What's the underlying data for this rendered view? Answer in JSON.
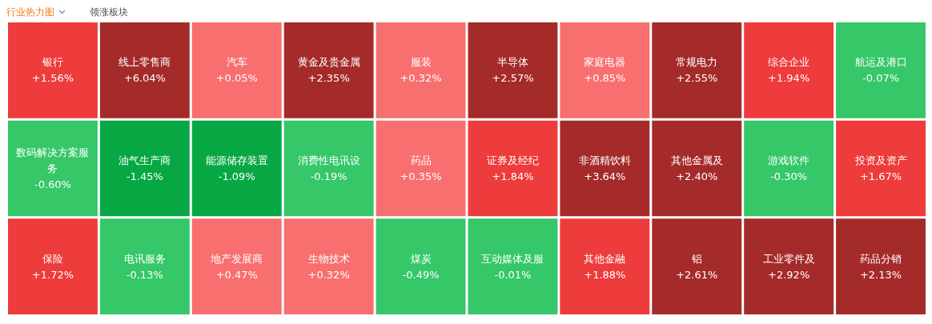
{
  "chart_data": {
    "type": "other",
    "title": "行业热力图",
    "annotations": [
      "领涨板块"
    ],
    "categories": [
      "银行",
      "数码解决方案服务",
      "保险",
      "线上零售商",
      "油气生产商",
      "电讯服务",
      "汽车",
      "能源储存装置",
      "地产发展商",
      "黄金及贵金属",
      "消费性电讯设",
      "生物技术",
      "服装",
      "药品",
      "煤炭",
      "半导体",
      "证券及经纪",
      "互动媒体及服",
      "家庭电器",
      "非酒精饮料",
      "其他金融",
      "常规电力",
      "综合企业",
      "航运及港口",
      "其他金属及",
      "铝",
      "游戏软件",
      "投资及资产",
      "工业零件及",
      "药品分销"
    ],
    "values": [
      1.56,
      -0.6,
      1.72,
      6.04,
      -1.45,
      -0.13,
      0.05,
      -1.09,
      0.47,
      2.35,
      -0.19,
      0.32,
      0.32,
      0.35,
      -0.49,
      2.57,
      1.84,
      -0.01,
      0.85,
      3.64,
      1.88,
      2.55,
      1.94,
      -0.07,
      2.4,
      2.61,
      -0.3,
      1.67,
      2.92,
      2.13
    ],
    "value_labels": [
      "+1.56%",
      "-0.60%",
      "+1.72%",
      "+6.04%",
      "-1.45%",
      "-0.13%",
      "+0.05%",
      "-1.09%",
      "+0.47%",
      "+2.35%",
      "-0.19%",
      "+0.32%",
      "+0.32%",
      "+0.35%",
      "-0.49%",
      "+2.57%",
      "+1.84%",
      "-0.01%",
      "+0.85%",
      "+3.64%",
      "+1.88%",
      "+2.55%",
      "+1.94%",
      "-0.07%",
      "+2.40%",
      "+2.61%",
      "-0.30%",
      "+1.67%",
      "+2.92%",
      "+2.13%"
    ]
  }
}
